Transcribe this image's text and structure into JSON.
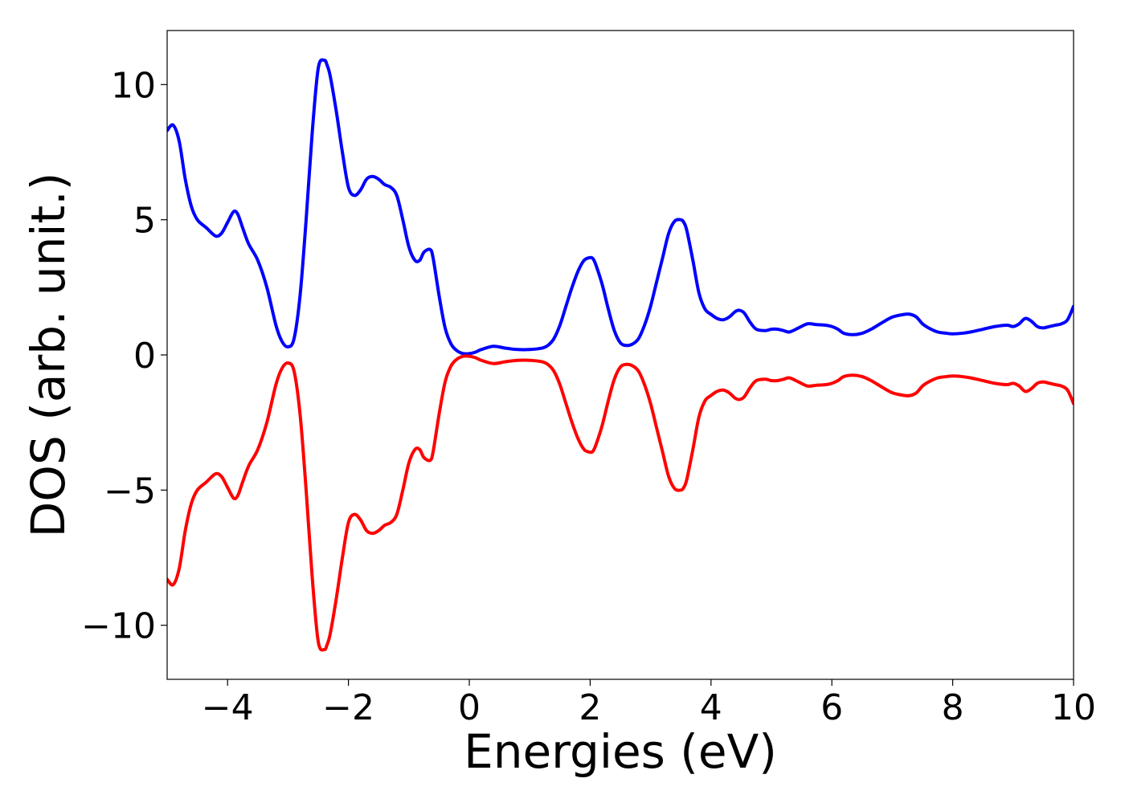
{
  "chart_data": {
    "type": "line",
    "title": "",
    "xlabel": "Energies (eV)",
    "ylabel": "DOS (arb. unit.)",
    "xlim": [
      -5,
      10
    ],
    "ylim": [
      -12,
      12
    ],
    "xticks": [
      -4,
      -2,
      0,
      2,
      4,
      6,
      8,
      10
    ],
    "xtick_labels": [
      "−4",
      "−2",
      "0",
      "2",
      "4",
      "6",
      "8",
      "10"
    ],
    "yticks": [
      -10,
      -5,
      0,
      5,
      10
    ],
    "ytick_labels": [
      "−10",
      "−5",
      "0",
      "5",
      "10"
    ],
    "grid": false,
    "legend": "none",
    "series": [
      {
        "color": "#0000ff",
        "x": [
          -5.0,
          -4.9,
          -4.8,
          -4.7,
          -4.6,
          -4.5,
          -4.35,
          -4.2,
          -4.1,
          -4.0,
          -3.9,
          -3.83,
          -3.75,
          -3.65,
          -3.5,
          -3.35,
          -3.2,
          -3.1,
          -3.0,
          -2.9,
          -2.8,
          -2.7,
          -2.6,
          -2.5,
          -2.4,
          -2.35,
          -2.3,
          -2.2,
          -2.1,
          -2.0,
          -1.9,
          -1.8,
          -1.7,
          -1.6,
          -1.5,
          -1.4,
          -1.3,
          -1.2,
          -1.1,
          -1.0,
          -0.9,
          -0.82,
          -0.75,
          -0.65,
          -0.6,
          -0.5,
          -0.4,
          -0.3,
          -0.2,
          -0.1,
          0.0,
          0.1,
          0.2,
          0.4,
          0.6,
          0.8,
          1.0,
          1.2,
          1.3,
          1.4,
          1.5,
          1.6,
          1.7,
          1.8,
          1.9,
          2.0,
          2.05,
          2.1,
          2.2,
          2.3,
          2.4,
          2.5,
          2.6,
          2.7,
          2.8,
          2.9,
          3.0,
          3.1,
          3.2,
          3.3,
          3.4,
          3.5,
          3.55,
          3.6,
          3.7,
          3.8,
          3.9,
          4.0,
          4.1,
          4.2,
          4.3,
          4.4,
          4.47,
          4.55,
          4.65,
          4.75,
          4.9,
          5.0,
          5.1,
          5.2,
          5.3,
          5.45,
          5.6,
          5.75,
          5.9,
          6.0,
          6.1,
          6.2,
          6.35,
          6.5,
          6.65,
          6.8,
          7.0,
          7.2,
          7.3,
          7.4,
          7.5,
          7.6,
          7.75,
          7.9,
          8.0,
          8.15,
          8.3,
          8.5,
          8.7,
          8.9,
          9.0,
          9.1,
          9.2,
          9.3,
          9.4,
          9.5,
          9.6,
          9.7,
          9.8,
          9.9,
          10.0
        ],
        "y": [
          8.3,
          8.5,
          7.9,
          6.5,
          5.5,
          5.0,
          4.7,
          4.4,
          4.5,
          4.9,
          5.3,
          5.2,
          4.7,
          4.1,
          3.5,
          2.5,
          1.1,
          0.5,
          0.3,
          0.6,
          2.2,
          5.0,
          8.2,
          10.6,
          10.9,
          10.7,
          10.3,
          9.0,
          7.5,
          6.2,
          5.9,
          6.1,
          6.5,
          6.6,
          6.5,
          6.3,
          6.2,
          5.9,
          5.0,
          4.0,
          3.5,
          3.5,
          3.8,
          3.9,
          3.6,
          2.2,
          1.0,
          0.4,
          0.15,
          0.05,
          0.05,
          0.1,
          0.2,
          0.32,
          0.25,
          0.2,
          0.2,
          0.25,
          0.35,
          0.6,
          1.1,
          1.8,
          2.5,
          3.1,
          3.5,
          3.6,
          3.55,
          3.3,
          2.6,
          1.7,
          0.9,
          0.45,
          0.35,
          0.4,
          0.6,
          1.1,
          1.8,
          2.7,
          3.6,
          4.5,
          4.95,
          5.0,
          4.9,
          4.6,
          3.5,
          2.3,
          1.7,
          1.5,
          1.35,
          1.3,
          1.4,
          1.6,
          1.65,
          1.55,
          1.2,
          0.95,
          0.9,
          0.95,
          0.95,
          0.9,
          0.85,
          1.0,
          1.15,
          1.12,
          1.1,
          1.05,
          0.95,
          0.8,
          0.75,
          0.8,
          0.95,
          1.15,
          1.4,
          1.5,
          1.5,
          1.4,
          1.15,
          1.0,
          0.85,
          0.8,
          0.78,
          0.8,
          0.85,
          0.95,
          1.05,
          1.1,
          1.05,
          1.15,
          1.35,
          1.25,
          1.05,
          1.0,
          1.05,
          1.1,
          1.15,
          1.3,
          1.8
        ]
      },
      {
        "color": "#ff0000",
        "x": [
          -5.0,
          -4.9,
          -4.8,
          -4.7,
          -4.6,
          -4.5,
          -4.35,
          -4.2,
          -4.1,
          -4.0,
          -3.9,
          -3.83,
          -3.75,
          -3.65,
          -3.5,
          -3.35,
          -3.2,
          -3.1,
          -3.0,
          -2.9,
          -2.8,
          -2.7,
          -2.6,
          -2.5,
          -2.4,
          -2.35,
          -2.3,
          -2.2,
          -2.1,
          -2.0,
          -1.9,
          -1.8,
          -1.7,
          -1.6,
          -1.5,
          -1.4,
          -1.3,
          -1.2,
          -1.1,
          -1.0,
          -0.9,
          -0.82,
          -0.75,
          -0.65,
          -0.6,
          -0.5,
          -0.4,
          -0.3,
          -0.2,
          -0.1,
          0.0,
          0.1,
          0.2,
          0.4,
          0.6,
          0.8,
          1.0,
          1.2,
          1.3,
          1.4,
          1.5,
          1.6,
          1.7,
          1.8,
          1.9,
          2.0,
          2.05,
          2.1,
          2.2,
          2.3,
          2.4,
          2.5,
          2.6,
          2.7,
          2.8,
          2.9,
          3.0,
          3.1,
          3.2,
          3.3,
          3.4,
          3.5,
          3.55,
          3.6,
          3.7,
          3.8,
          3.9,
          4.0,
          4.1,
          4.2,
          4.3,
          4.4,
          4.47,
          4.55,
          4.65,
          4.75,
          4.9,
          5.0,
          5.1,
          5.2,
          5.3,
          5.45,
          5.6,
          5.75,
          5.9,
          6.0,
          6.1,
          6.2,
          6.35,
          6.5,
          6.65,
          6.8,
          7.0,
          7.2,
          7.3,
          7.4,
          7.5,
          7.6,
          7.75,
          7.9,
          8.0,
          8.15,
          8.3,
          8.5,
          8.7,
          8.9,
          9.0,
          9.1,
          9.2,
          9.3,
          9.4,
          9.5,
          9.6,
          9.7,
          9.8,
          9.9,
          10.0
        ],
        "y": [
          -8.3,
          -8.5,
          -7.9,
          -6.5,
          -5.5,
          -5.0,
          -4.7,
          -4.4,
          -4.5,
          -4.9,
          -5.3,
          -5.2,
          -4.7,
          -4.1,
          -3.5,
          -2.5,
          -1.1,
          -0.5,
          -0.3,
          -0.6,
          -2.2,
          -5.0,
          -8.2,
          -10.6,
          -10.9,
          -10.7,
          -10.3,
          -9.0,
          -7.5,
          -6.2,
          -5.9,
          -6.1,
          -6.5,
          -6.6,
          -6.5,
          -6.3,
          -6.2,
          -5.9,
          -5.0,
          -4.0,
          -3.5,
          -3.5,
          -3.8,
          -3.9,
          -3.6,
          -2.2,
          -1.0,
          -0.4,
          -0.15,
          -0.05,
          -0.05,
          -0.1,
          -0.2,
          -0.32,
          -0.25,
          -0.2,
          -0.2,
          -0.25,
          -0.35,
          -0.6,
          -1.1,
          -1.8,
          -2.5,
          -3.1,
          -3.5,
          -3.6,
          -3.55,
          -3.3,
          -2.6,
          -1.7,
          -0.9,
          -0.45,
          -0.35,
          -0.4,
          -0.6,
          -1.1,
          -1.8,
          -2.7,
          -3.6,
          -4.5,
          -4.95,
          -5.0,
          -4.9,
          -4.6,
          -3.5,
          -2.3,
          -1.7,
          -1.5,
          -1.35,
          -1.3,
          -1.4,
          -1.6,
          -1.65,
          -1.55,
          -1.2,
          -0.95,
          -0.9,
          -0.95,
          -0.95,
          -0.9,
          -0.85,
          -1.0,
          -1.15,
          -1.12,
          -1.1,
          -1.05,
          -0.95,
          -0.8,
          -0.75,
          -0.8,
          -0.95,
          -1.15,
          -1.4,
          -1.5,
          -1.5,
          -1.4,
          -1.15,
          -1.0,
          -0.85,
          -0.8,
          -0.78,
          -0.8,
          -0.85,
          -0.95,
          -1.05,
          -1.1,
          -1.05,
          -1.15,
          -1.35,
          -1.25,
          -1.05,
          -1.0,
          -1.05,
          -1.1,
          -1.15,
          -1.3,
          -1.8
        ]
      }
    ]
  }
}
